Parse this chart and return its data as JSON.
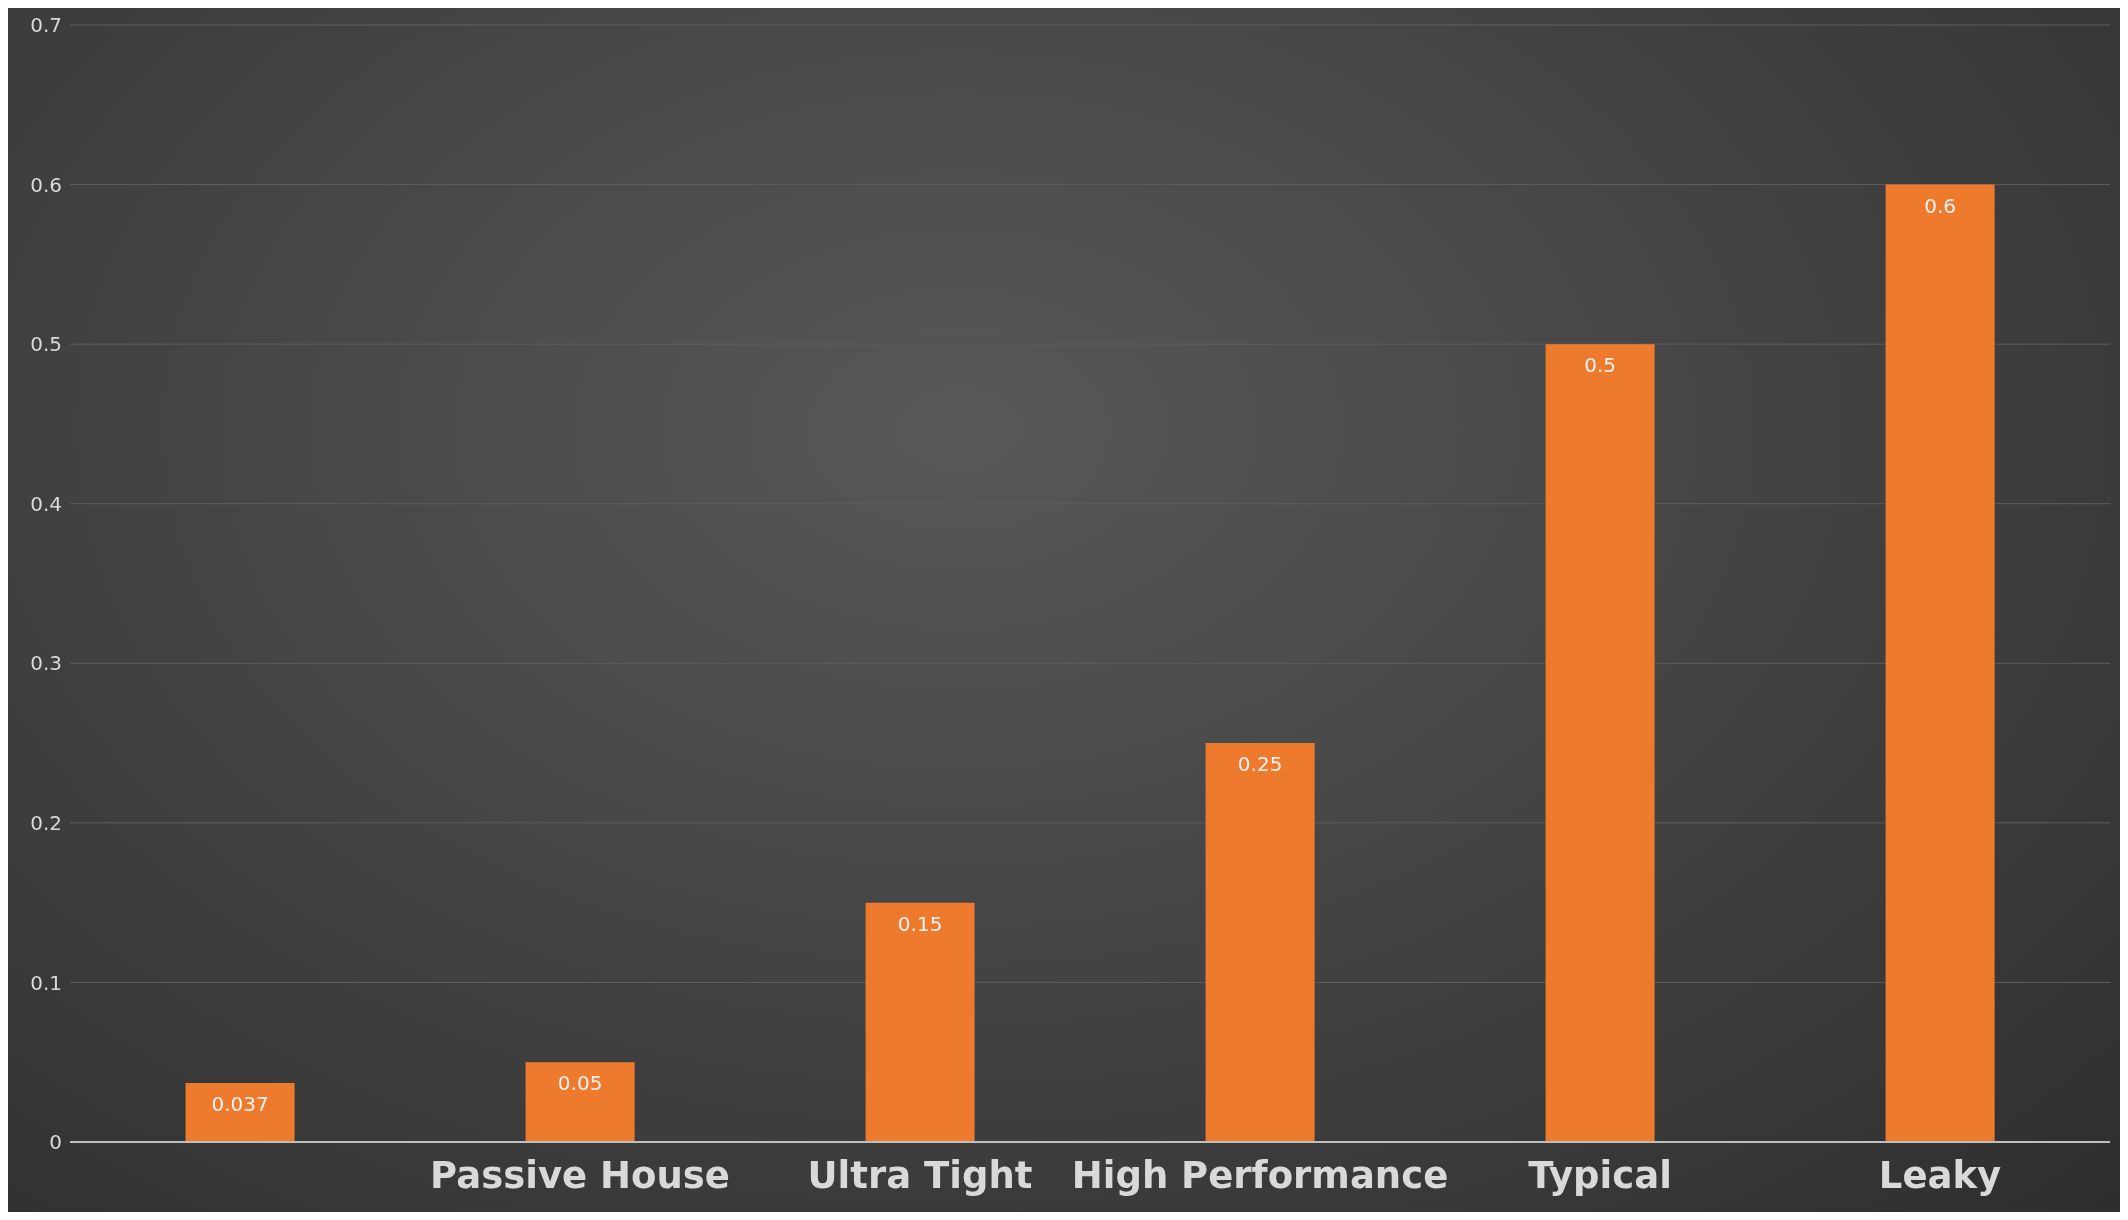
{
  "chart_data": {
    "type": "bar",
    "categories": [
      null,
      "Passive House",
      "Ultra Tight",
      "High Performance",
      "Typical",
      "Leaky"
    ],
    "values": [
      0.037,
      0.05,
      0.15,
      0.25,
      0.5,
      0.6
    ],
    "color": "#ee7a2e",
    "ylim": [
      0,
      0.7
    ],
    "yticks": [
      0,
      0.1,
      0.2,
      0.3,
      0.4,
      0.5,
      0.6,
      0.7
    ],
    "grid": "y",
    "data_labels": true
  }
}
